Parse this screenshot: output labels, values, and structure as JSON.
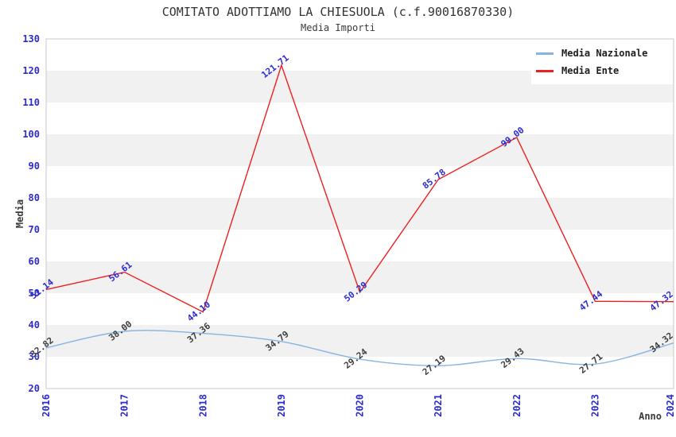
{
  "title": "COMITATO ADOTTIAMO LA CHIESUOLA (c.f.90016870330)",
  "subtitle": "Media Importi",
  "colors": {
    "tick_label": "#2b2bd0",
    "band_gray": "#f1f1f1",
    "plot_border": "#c9c9c9",
    "title_text": "#333333"
  },
  "chart_data": {
    "type": "line",
    "title": "COMITATO ADOTTIAMO LA CHIESUOLA (c.f.90016870330)",
    "subtitle": "Media Importi",
    "xlabel": "Anno",
    "ylabel": "Media",
    "x": [
      2016,
      2017,
      2018,
      2019,
      2020,
      2021,
      2022,
      2023,
      2024
    ],
    "series": [
      {
        "name": "Media Nazionale",
        "color": "#85b4e4",
        "label_color": "#3d3d3d",
        "smooth": true,
        "values": [
          32.82,
          38.0,
          37.36,
          34.79,
          29.24,
          27.19,
          29.43,
          27.71,
          34.32
        ]
      },
      {
        "name": "Media Ente",
        "color": "#ee1f1f",
        "label_color": "#2b2bd0",
        "smooth": false,
        "values": [
          51.14,
          56.61,
          44.1,
          121.71,
          50.29,
          85.78,
          99.0,
          47.44,
          47.32
        ]
      }
    ],
    "ylim": [
      20,
      130
    ],
    "ytick_step": 10,
    "grid": "banded-horizontal",
    "legend_position": "top-right"
  }
}
